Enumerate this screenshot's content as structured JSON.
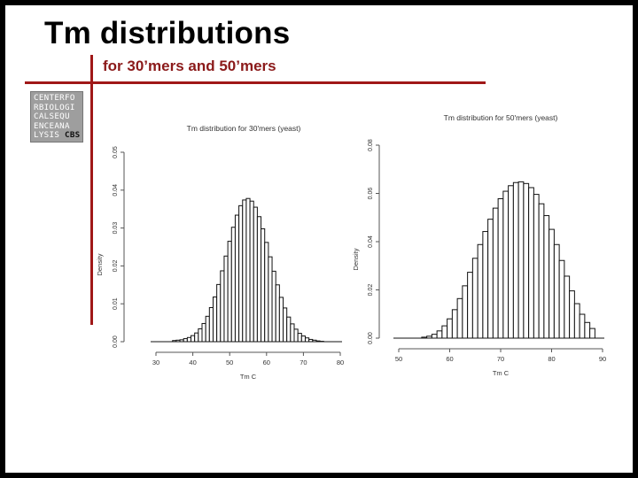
{
  "slide": {
    "title": "Tm distributions",
    "subtitle": "for 30’mers and 50’mers"
  },
  "logo": {
    "lines": [
      "CENTERFO",
      "RBIOLOGI",
      "CALSEQU",
      "ENCEANA",
      "LYSIS"
    ],
    "badge": "CBS"
  },
  "chart_data": [
    {
      "type": "bar",
      "title": "Tm distribution for 30'mers (yeast)",
      "xlabel": "Tm C",
      "ylabel": "Density",
      "xlim": [
        30,
        80
      ],
      "ylim": [
        0,
        0.05
      ],
      "xticks": [
        "30",
        "40",
        "50",
        "60",
        "70",
        "80"
      ],
      "yticks": [
        "0.00",
        "0.01",
        "0.02",
        "0.03",
        "0.04",
        "0.05"
      ],
      "bin_width": 1,
      "x": [
        35,
        36,
        37,
        38,
        39,
        40,
        41,
        42,
        43,
        44,
        45,
        46,
        47,
        48,
        49,
        50,
        51,
        52,
        53,
        54,
        55,
        56,
        57,
        58,
        59,
        60,
        61,
        62,
        63,
        64,
        65,
        66,
        67,
        68,
        69,
        70,
        71,
        72,
        73,
        74,
        75
      ],
      "values": [
        0.0003,
        0.0004,
        0.0005,
        0.0008,
        0.0011,
        0.0016,
        0.0023,
        0.0034,
        0.0048,
        0.0067,
        0.009,
        0.0118,
        0.0151,
        0.0187,
        0.0226,
        0.0265,
        0.0302,
        0.0334,
        0.0359,
        0.0374,
        0.0378,
        0.0371,
        0.0355,
        0.033,
        0.0298,
        0.0262,
        0.0224,
        0.0186,
        0.015,
        0.0117,
        0.0089,
        0.0065,
        0.0047,
        0.0033,
        0.0022,
        0.0015,
        0.001,
        0.0006,
        0.0004,
        0.0002,
        0.0001
      ],
      "grid": false,
      "legend": "none"
    },
    {
      "type": "bar",
      "title": "Tm distribution for 50'mers (yeast)",
      "xlabel": "Tm C",
      "ylabel": "Density",
      "xlim": [
        50,
        90
      ],
      "ylim": [
        0,
        0.08
      ],
      "xticks": [
        "50",
        "60",
        "70",
        "80",
        "90"
      ],
      "yticks": [
        "0.00",
        "0.02",
        "0.04",
        "0.06",
        "0.08"
      ],
      "bin_width": 1,
      "x": [
        55,
        56,
        57,
        58,
        59,
        60,
        61,
        62,
        63,
        64,
        65,
        66,
        67,
        68,
        69,
        70,
        71,
        72,
        73,
        74,
        75,
        76,
        77,
        78,
        79,
        80,
        81,
        82,
        83,
        84,
        85,
        86,
        87,
        88
      ],
      "values": [
        0.0004,
        0.0008,
        0.0016,
        0.003,
        0.0051,
        0.008,
        0.0118,
        0.0164,
        0.0217,
        0.0273,
        0.0331,
        0.0388,
        0.0442,
        0.0493,
        0.0539,
        0.0578,
        0.0609,
        0.0632,
        0.0645,
        0.0648,
        0.0641,
        0.0624,
        0.0596,
        0.0557,
        0.0508,
        0.0451,
        0.0388,
        0.0322,
        0.0257,
        0.0196,
        0.0143,
        0.0099,
        0.0065,
        0.004
      ],
      "grid": false,
      "legend": "none"
    }
  ]
}
